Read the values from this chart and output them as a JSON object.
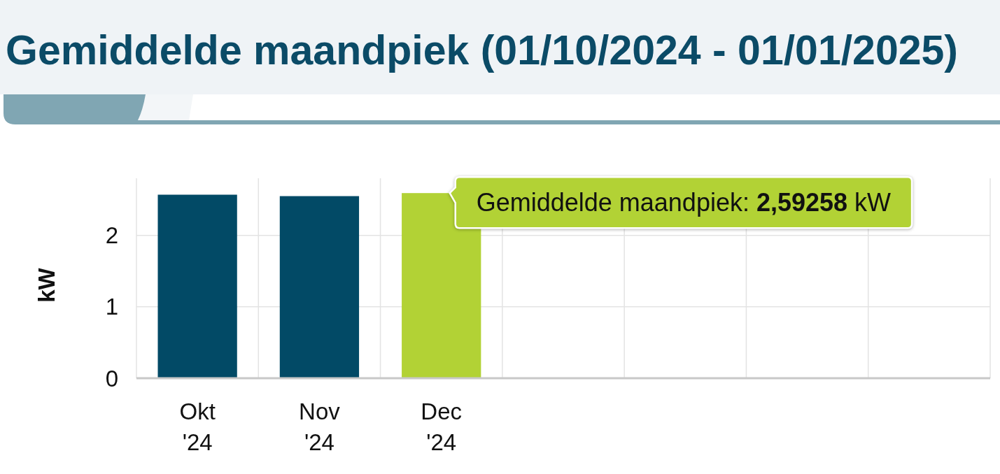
{
  "chart_data": {
    "type": "bar",
    "title": "Gemiddelde maandpiek (01/10/2024 - 01/01/2025)",
    "ylabel": "kW",
    "categories": [
      "Okt '24",
      "Nov '24",
      "Dec '24",
      null,
      null,
      null,
      null
    ],
    "values": [
      2.57,
      2.55,
      2.59258,
      null,
      null,
      null,
      null
    ],
    "colors": [
      "#024a66",
      "#024a66",
      "#b2d235",
      null,
      null,
      null,
      null
    ],
    "ylim": [
      0,
      2.8
    ],
    "yticks": [
      0,
      1,
      2
    ],
    "grid": true,
    "annotations": [
      {
        "text": "Gemiddelde maandpiek: 2,59258 kW",
        "x": "Dec '24",
        "y": 2.59258
      }
    ]
  }
}
